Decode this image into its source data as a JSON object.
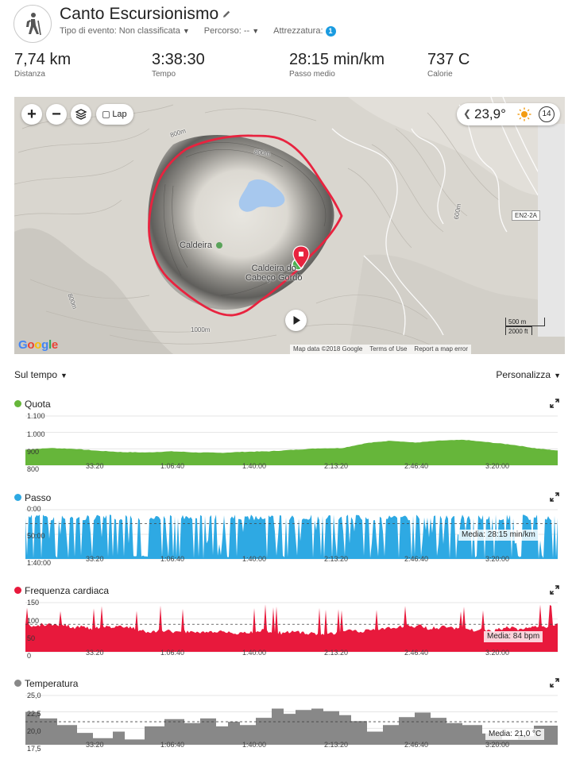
{
  "header": {
    "title": "Canto Escursionismo",
    "event_type_label": "Tipo di evento: Non classificata",
    "route_label": "Percorso: --",
    "gear_label": "Attrezzatura:",
    "gear_count": "1",
    "avatar_icon": "hiker-icon"
  },
  "stats": [
    {
      "value": "7,74 km",
      "label": "Distanza"
    },
    {
      "value": "3:38:30",
      "label": "Tempo"
    },
    {
      "value": "28:15 min/km",
      "label": "Passo medio"
    },
    {
      "value": "737 C",
      "label": "Calorie"
    }
  ],
  "map": {
    "zoom_in": "+",
    "zoom_out": "−",
    "lap_label": "Lap",
    "weather_temp": "23,9°",
    "wind_speed": "14",
    "place_label": "Caldeira",
    "place_label_2_line1": "Caldeira do",
    "place_label_2_line2": "Cabeço Gordo",
    "road_label": "EN2-2A",
    "contour_labels": [
      "800m",
      "800m",
      "800m",
      "600m",
      "1000m"
    ],
    "google_logo": "Google",
    "attribution": [
      "Map data ©2018 Google",
      "Terms of Use",
      "Report a map error"
    ],
    "scale_metric": "500 m",
    "scale_imperial": "2000 ft",
    "route_color": "#e8233f"
  },
  "controls": {
    "timeline_label": "Sul tempo",
    "customize_label": "Personalizza"
  },
  "x_ticks": [
    "33:20",
    "1:06:40",
    "1:40:00",
    "2:13:20",
    "2:46:40",
    "3:20:00"
  ],
  "charts": [
    {
      "key": "quota",
      "title": "Quota",
      "color": "#66b63a",
      "y_ticks": [
        "1.100",
        "1.000",
        "900",
        "800"
      ],
      "chart_data": {
        "type": "area",
        "title": "Quota",
        "x_unit": "seconds",
        "x": [
          0,
          600,
          1200,
          1800,
          2400,
          3000,
          3600,
          4200,
          4800,
          5400,
          6000,
          6600,
          7200,
          7800,
          8400,
          9000,
          9600,
          10200,
          10800,
          11400,
          12000,
          12600,
          13110
        ],
        "y": [
          895,
          905,
          900,
          888,
          880,
          878,
          885,
          878,
          876,
          882,
          885,
          894,
          903,
          905,
          935,
          950,
          938,
          950,
          955,
          940,
          925,
          902,
          890
        ],
        "ylim": [
          800,
          1100
        ]
      }
    },
    {
      "key": "passo",
      "title": "Passo",
      "color": "#2ea9e3",
      "y_ticks": [
        "0:00",
        "50:00",
        "1:40:00"
      ],
      "average_label": "Media: 28:15 min/km",
      "chart_data": {
        "type": "area",
        "title": "Passo",
        "y_unit": "min/km",
        "y_axis": "inverted",
        "average": 28.25,
        "ylim": [
          0,
          100
        ]
      }
    },
    {
      "key": "frequenza",
      "title": "Frequenza cardiaca",
      "color": "#e8193c",
      "y_ticks": [
        "150",
        "100",
        "50",
        "0"
      ],
      "average_label": "Media: 84 bpm",
      "chart_data": {
        "type": "area",
        "title": "Frequenza cardiaca",
        "y_unit": "bpm",
        "average": 84,
        "ylim": [
          0,
          150
        ]
      }
    },
    {
      "key": "temperatura",
      "title": "Temperatura",
      "color": "#888888",
      "y_ticks": [
        "25,0",
        "22,5",
        "20,0",
        "17,5"
      ],
      "average_label": "Media: 21,0 °C",
      "chart_data": {
        "type": "area",
        "title": "Temperatura",
        "y_unit": "°C",
        "average": 21.0,
        "ylim": [
          17.5,
          25
        ]
      }
    }
  ]
}
